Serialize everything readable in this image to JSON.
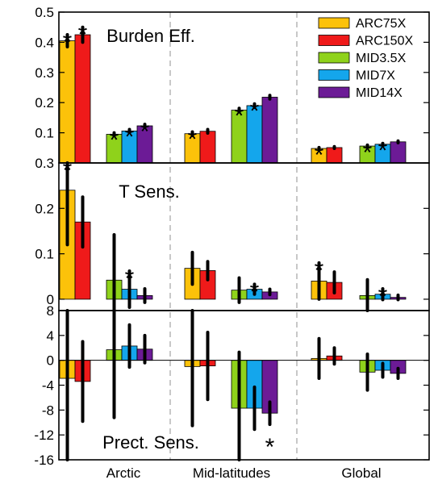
{
  "colors": {
    "ARC75X": "#fcc20a",
    "ARC150X": "#ef1a1a",
    "MID3.5X": "#8fd21b",
    "MID7X": "#14a6ec",
    "MID14X": "#6c1b96",
    "divider": "#aaaaaa"
  },
  "chart_data": {
    "type": "bar",
    "categories": [
      "Arctic",
      "Mid-latitudes",
      "Global"
    ],
    "legend": {
      "placement": "top-right",
      "entries": [
        "ARC75X",
        "ARC150X",
        "MID3.5X",
        "MID7X",
        "MID14X"
      ]
    },
    "panels": [
      {
        "title": "Burden Eff.",
        "ylim": [
          0,
          0.5
        ],
        "yticks": [
          "0.1",
          "0.2",
          "0.3",
          "0.4",
          "0.5"
        ],
        "series": [
          {
            "name": "ARC75X",
            "values": [
              0.405,
              null,
              0.097,
              null,
              0.048,
              null
            ],
            "err": [
              0.02,
              null,
              0.006,
              null,
              0.003,
              null
            ],
            "star": [
              true,
              null,
              true,
              null,
              true,
              null
            ]
          },
          {
            "name": "ARC150X",
            "values": [
              0.425,
              null,
              0.105,
              null,
              0.051,
              null
            ],
            "err": [
              0.025,
              null,
              0.006,
              null,
              0.003,
              null
            ],
            "star": [
              true,
              null,
              false,
              null,
              false,
              null
            ]
          },
          {
            "name": "MID3.5X",
            "values": [
              null,
              0.095,
              null,
              0.175,
              null,
              0.056
            ],
            "err": [
              null,
              0.005,
              null,
              0.006,
              null,
              0.003
            ],
            "star": [
              null,
              true,
              null,
              true,
              null,
              true
            ]
          },
          {
            "name": "MID7X",
            "values": [
              null,
              0.106,
              null,
              0.19,
              null,
              0.062
            ],
            "err": [
              null,
              0.005,
              null,
              0.006,
              null,
              0.003
            ],
            "star": [
              null,
              true,
              null,
              true,
              null,
              true
            ]
          },
          {
            "name": "MID14X",
            "values": [
              null,
              0.123,
              null,
              0.218,
              null,
              0.07
            ],
            "err": [
              null,
              0.005,
              null,
              0.006,
              null,
              0.003
            ],
            "star": [
              null,
              true,
              null,
              false,
              null,
              false
            ]
          }
        ]
      },
      {
        "title": "T Sens.",
        "ylim": [
          -0.025,
          0.3
        ],
        "yticks": [
          "0",
          "0.1",
          "0.2",
          "0.3"
        ],
        "series": [
          {
            "name": "ARC75X",
            "values": [
              0.24,
              null,
              0.068,
              null,
              0.04,
              null
            ],
            "err": [
              0.12,
              null,
              0.035,
              null,
              0.04,
              null
            ],
            "star": [
              true,
              null,
              false,
              null,
              true,
              null
            ]
          },
          {
            "name": "ARC150X",
            "values": [
              0.17,
              null,
              0.063,
              null,
              0.037,
              null
            ],
            "err": [
              0.055,
              null,
              0.02,
              null,
              0.023,
              null
            ],
            "star": [
              false,
              null,
              false,
              null,
              false,
              null
            ]
          },
          {
            "name": "MID3.5X",
            "values": [
              null,
              0.042,
              null,
              0.02,
              null,
              0.008
            ],
            "err": [
              null,
              0.1,
              null,
              0.027,
              null,
              0.035
            ],
            "star": [
              null,
              false,
              null,
              false,
              null,
              false
            ]
          },
          {
            "name": "MID7X",
            "values": [
              null,
              0.022,
              null,
              0.022,
              null,
              0.011
            ],
            "err": [
              null,
              0.04,
              null,
              0.011,
              null,
              0.012
            ],
            "star": [
              null,
              true,
              null,
              true,
              null,
              true
            ]
          },
          {
            "name": "MID14X",
            "values": [
              null,
              0.008,
              null,
              0.016,
              null,
              0.004
            ],
            "err": [
              null,
              0.015,
              null,
              0.006,
              null,
              0.005
            ],
            "star": [
              null,
              false,
              null,
              false,
              null,
              false
            ]
          }
        ]
      },
      {
        "title": "Prect. Sens.",
        "ylim": [
          -16,
          8
        ],
        "yticks": [
          "8",
          "4",
          "0",
          "-4",
          "-8",
          "-12",
          "-16"
        ],
        "series": [
          {
            "name": "ARC75X",
            "values": [
              -2.9,
              null,
              -1.0,
              null,
              0.3,
              null
            ],
            "err": [
              13.5,
              null,
              9.5,
              null,
              3.2,
              null
            ],
            "star": [
              false,
              null,
              false,
              null,
              false,
              null
            ]
          },
          {
            "name": "ARC150X",
            "values": [
              -3.4,
              null,
              -0.9,
              null,
              0.7,
              null
            ],
            "err": [
              6.4,
              null,
              5.4,
              null,
              1.3,
              null
            ],
            "star": [
              false,
              null,
              false,
              null,
              false,
              null
            ]
          },
          {
            "name": "MID3.5X",
            "values": [
              null,
              1.7,
              null,
              -7.7,
              null,
              -1.9
            ],
            "err": [
              null,
              10.9,
              null,
              9.0,
              null,
              2.9
            ],
            "star": [
              null,
              false,
              null,
              false,
              null,
              false
            ]
          },
          {
            "name": "MID7X",
            "values": [
              null,
              2.3,
              null,
              -7.7,
              null,
              -1.6
            ],
            "err": [
              null,
              3.4,
              null,
              3.4,
              null,
              1.1
            ],
            "star": [
              null,
              false,
              null,
              false,
              null,
              false
            ]
          },
          {
            "name": "MID14X",
            "values": [
              null,
              1.8,
              null,
              -8.5,
              null,
              -2.1
            ],
            "err": [
              null,
              2.2,
              null,
              1.8,
              null,
              0.8
            ],
            "star": [
              null,
              false,
              null,
              true,
              null,
              false
            ]
          }
        ]
      }
    ]
  }
}
